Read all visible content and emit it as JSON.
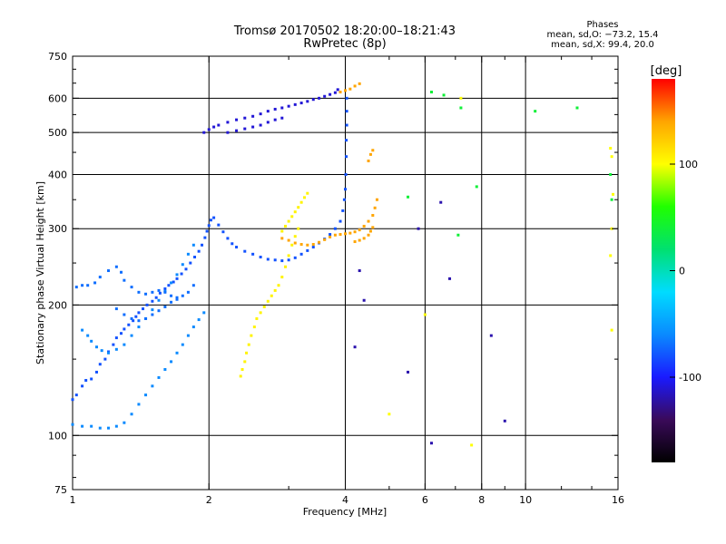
{
  "header": {
    "title_line1": "Tromsø 20170502 18:20:00–18:21:43",
    "title_line2": "RwPretec (8p)",
    "stats_title": "Phases",
    "stats_line1": "mean, sd,O: −73.2, 15.4",
    "stats_line2": "mean, sd,X:  99.4, 20.0"
  },
  "colorbar": {
    "unit_label": "[deg]",
    "ticks": [
      "100",
      "0",
      "-100"
    ],
    "tick_values": [
      100,
      0,
      -100
    ],
    "range": [
      -180,
      180
    ],
    "colors": [
      "#000000",
      "#3a0a5a",
      "#1a1aff",
      "#0a8aff",
      "#00dcff",
      "#00e070",
      "#20ff00",
      "#ffff00",
      "#ffa500",
      "#ff0000"
    ]
  },
  "chart_data": {
    "type": "scatter",
    "xlabel": "Frequency [MHz]",
    "ylabel": "Stationary phase Virtual Height [km]",
    "xscale": "log",
    "yscale": "log",
    "xlim": [
      1,
      16
    ],
    "ylim": [
      75,
      750
    ],
    "xticks": [
      1,
      2,
      4,
      6,
      8,
      10,
      16
    ],
    "xtick_labels": [
      "1",
      "2",
      "4",
      "6",
      "8",
      "10",
      "16"
    ],
    "yticks": [
      75,
      100,
      200,
      300,
      400,
      500,
      600,
      750
    ],
    "ytick_labels": [
      "75",
      "100",
      "200",
      "300",
      "400",
      "500",
      "600",
      "750"
    ],
    "grid_x": [
      2,
      4,
      6,
      8,
      10
    ],
    "grid_y": [
      100,
      200,
      300,
      400,
      500,
      600
    ],
    "series": [
      {
        "color_phase": -80,
        "points": [
          [
            1.0,
            121
          ],
          [
            1.02,
            124
          ],
          [
            1.05,
            130
          ],
          [
            1.07,
            134
          ],
          [
            1.1,
            135
          ],
          [
            1.13,
            140
          ],
          [
            1.15,
            146
          ],
          [
            1.18,
            150
          ],
          [
            1.2,
            156
          ],
          [
            1.23,
            162
          ],
          [
            1.25,
            168
          ],
          [
            1.28,
            172
          ],
          [
            1.3,
            176
          ],
          [
            1.33,
            180
          ],
          [
            1.36,
            184
          ],
          [
            1.38,
            188
          ],
          [
            1.4,
            192
          ],
          [
            1.43,
            196
          ],
          [
            1.46,
            200
          ],
          [
            1.5,
            204
          ],
          [
            1.53,
            208
          ],
          [
            1.56,
            213
          ],
          [
            1.6,
            218
          ],
          [
            1.63,
            222
          ],
          [
            1.67,
            226
          ],
          [
            1.7,
            230
          ],
          [
            1.74,
            236
          ],
          [
            1.78,
            242
          ],
          [
            1.82,
            250
          ],
          [
            1.86,
            258
          ],
          [
            1.9,
            266
          ],
          [
            1.93,
            275
          ],
          [
            1.96,
            286
          ],
          [
            1.98,
            296
          ],
          [
            2.0,
            305
          ],
          [
            2.02,
            314
          ],
          [
            2.05,
            318
          ],
          [
            2.1,
            306
          ],
          [
            2.15,
            295
          ],
          [
            2.2,
            285
          ],
          [
            2.25,
            277
          ],
          [
            2.3,
            272
          ],
          [
            2.4,
            266
          ],
          [
            2.5,
            262
          ],
          [
            2.6,
            258
          ],
          [
            2.7,
            255
          ],
          [
            2.8,
            254
          ],
          [
            2.9,
            253
          ],
          [
            3.0,
            254
          ],
          [
            3.1,
            257
          ],
          [
            3.2,
            262
          ],
          [
            3.3,
            267
          ],
          [
            3.4,
            272
          ],
          [
            3.5,
            278
          ],
          [
            3.6,
            284
          ],
          [
            3.7,
            291
          ],
          [
            3.8,
            300
          ],
          [
            3.9,
            312
          ],
          [
            3.95,
            330
          ],
          [
            3.98,
            350
          ],
          [
            4.0,
            370
          ],
          [
            4.01,
            400
          ],
          [
            4.02,
            440
          ],
          [
            4.02,
            480
          ],
          [
            4.03,
            520
          ],
          [
            4.03,
            560
          ],
          [
            4.03,
            600
          ]
        ]
      },
      {
        "color_phase": -110,
        "points": [
          [
            1.95,
            500
          ],
          [
            2.0,
            508
          ],
          [
            2.05,
            515
          ],
          [
            2.1,
            520
          ],
          [
            2.2,
            528
          ],
          [
            2.3,
            535
          ],
          [
            2.4,
            540
          ],
          [
            2.5,
            545
          ],
          [
            2.6,
            552
          ],
          [
            2.7,
            560
          ],
          [
            2.8,
            566
          ],
          [
            2.9,
            570
          ],
          [
            3.0,
            575
          ],
          [
            3.1,
            580
          ],
          [
            3.2,
            585
          ],
          [
            3.3,
            590
          ],
          [
            3.4,
            596
          ],
          [
            3.5,
            600
          ],
          [
            3.6,
            606
          ],
          [
            3.7,
            612
          ],
          [
            3.8,
            618
          ],
          [
            3.85,
            628
          ],
          [
            2.2,
            500
          ],
          [
            2.3,
            505
          ],
          [
            2.4,
            510
          ],
          [
            2.5,
            515
          ],
          [
            2.6,
            520
          ],
          [
            2.7,
            528
          ],
          [
            2.8,
            535
          ],
          [
            2.9,
            540
          ]
        ]
      },
      {
        "color_phase": -60,
        "points": [
          [
            1.0,
            106
          ],
          [
            1.05,
            105
          ],
          [
            1.1,
            105
          ],
          [
            1.15,
            104
          ],
          [
            1.2,
            104
          ],
          [
            1.25,
            105
          ],
          [
            1.3,
            107
          ],
          [
            1.35,
            112
          ],
          [
            1.4,
            118
          ],
          [
            1.45,
            124
          ],
          [
            1.5,
            130
          ],
          [
            1.55,
            136
          ],
          [
            1.6,
            142
          ],
          [
            1.65,
            148
          ],
          [
            1.7,
            155
          ],
          [
            1.75,
            162
          ],
          [
            1.8,
            170
          ],
          [
            1.85,
            178
          ],
          [
            1.9,
            185
          ],
          [
            1.95,
            192
          ],
          [
            1.05,
            175
          ],
          [
            1.08,
            170
          ],
          [
            1.1,
            165
          ],
          [
            1.13,
            160
          ],
          [
            1.16,
            157
          ],
          [
            1.2,
            155
          ],
          [
            1.25,
            158
          ],
          [
            1.3,
            162
          ],
          [
            1.35,
            170
          ],
          [
            1.4,
            178
          ],
          [
            1.45,
            186
          ],
          [
            1.5,
            195
          ],
          [
            1.55,
            205
          ],
          [
            1.6,
            215
          ],
          [
            1.65,
            225
          ],
          [
            1.7,
            235
          ],
          [
            1.75,
            248
          ],
          [
            1.8,
            262
          ],
          [
            1.85,
            275
          ]
        ]
      },
      {
        "color_phase": -70,
        "points": [
          [
            1.02,
            220
          ],
          [
            1.05,
            222
          ],
          [
            1.08,
            222
          ],
          [
            1.12,
            225
          ],
          [
            1.15,
            232
          ],
          [
            1.2,
            240
          ],
          [
            1.25,
            245
          ],
          [
            1.28,
            238
          ],
          [
            1.3,
            228
          ],
          [
            1.35,
            220
          ],
          [
            1.4,
            214
          ],
          [
            1.45,
            212
          ],
          [
            1.5,
            214
          ],
          [
            1.55,
            216
          ],
          [
            1.6,
            214
          ],
          [
            1.65,
            210
          ],
          [
            1.7,
            208
          ],
          [
            1.75,
            210
          ],
          [
            1.8,
            214
          ],
          [
            1.85,
            222
          ],
          [
            1.25,
            196
          ],
          [
            1.3,
            190
          ],
          [
            1.35,
            186
          ],
          [
            1.4,
            184
          ],
          [
            1.45,
            186
          ],
          [
            1.5,
            190
          ],
          [
            1.55,
            194
          ],
          [
            1.6,
            198
          ],
          [
            1.65,
            203
          ],
          [
            1.7,
            206
          ]
        ]
      },
      {
        "color_phase": 105,
        "points": [
          [
            2.35,
            137
          ],
          [
            2.37,
            142
          ],
          [
            2.4,
            148
          ],
          [
            2.42,
            155
          ],
          [
            2.45,
            162
          ],
          [
            2.48,
            170
          ],
          [
            2.52,
            178
          ],
          [
            2.55,
            186
          ],
          [
            2.6,
            192
          ],
          [
            2.65,
            198
          ],
          [
            2.7,
            204
          ],
          [
            2.75,
            210
          ],
          [
            2.8,
            216
          ],
          [
            2.85,
            222
          ],
          [
            2.9,
            232
          ],
          [
            2.95,
            245
          ],
          [
            3.0,
            260
          ],
          [
            3.05,
            275
          ],
          [
            3.1,
            288
          ],
          [
            3.15,
            300
          ],
          [
            2.9,
            296
          ],
          [
            2.95,
            304
          ],
          [
            3.0,
            312
          ],
          [
            3.05,
            320
          ],
          [
            3.1,
            328
          ],
          [
            3.15,
            336
          ],
          [
            3.2,
            345
          ],
          [
            3.25,
            354
          ],
          [
            3.3,
            362
          ]
        ]
      },
      {
        "color_phase": 140,
        "points": [
          [
            2.9,
            285
          ],
          [
            3.0,
            282
          ],
          [
            3.1,
            278
          ],
          [
            3.2,
            276
          ],
          [
            3.3,
            275
          ],
          [
            3.4,
            276
          ],
          [
            3.5,
            279
          ],
          [
            3.6,
            283
          ],
          [
            3.7,
            287
          ],
          [
            3.8,
            290
          ],
          [
            3.9,
            291
          ],
          [
            4.0,
            292
          ],
          [
            4.1,
            293
          ],
          [
            4.2,
            295
          ],
          [
            4.3,
            298
          ],
          [
            4.4,
            304
          ],
          [
            4.5,
            312
          ],
          [
            4.6,
            322
          ],
          [
            4.65,
            335
          ],
          [
            4.7,
            350
          ],
          [
            4.2,
            280
          ],
          [
            4.3,
            282
          ],
          [
            4.4,
            285
          ],
          [
            4.5,
            290
          ],
          [
            4.55,
            296
          ],
          [
            4.6,
            302
          ],
          [
            3.9,
            620
          ],
          [
            4.0,
            625
          ],
          [
            4.1,
            630
          ],
          [
            4.2,
            640
          ],
          [
            4.3,
            648
          ],
          [
            4.5,
            430
          ],
          [
            4.55,
            445
          ],
          [
            4.6,
            455
          ]
        ]
      },
      {
        "color_phase": -120,
        "points": [
          [
            4.3,
            240
          ],
          [
            4.4,
            205
          ],
          [
            4.2,
            160
          ],
          [
            5.5,
            140
          ],
          [
            6.2,
            96
          ],
          [
            8.4,
            170
          ],
          [
            9.0,
            108
          ],
          [
            6.8,
            230
          ],
          [
            6.5,
            345
          ],
          [
            5.8,
            300
          ]
        ]
      },
      {
        "color_phase": 40,
        "points": [
          [
            6.2,
            620
          ],
          [
            6.6,
            610
          ],
          [
            7.2,
            570
          ],
          [
            10.5,
            560
          ],
          [
            13.0,
            570
          ],
          [
            15.4,
            400
          ],
          [
            15.5,
            350
          ],
          [
            7.8,
            375
          ],
          [
            5.5,
            355
          ],
          [
            7.1,
            290
          ]
        ]
      },
      {
        "color_phase": 100,
        "points": [
          [
            15.4,
            460
          ],
          [
            15.5,
            440
          ],
          [
            15.6,
            360
          ],
          [
            15.5,
            300
          ],
          [
            15.4,
            260
          ],
          [
            15.5,
            175
          ],
          [
            7.2,
            600
          ],
          [
            7.6,
            95
          ],
          [
            5.0,
            112
          ],
          [
            6.0,
            190
          ]
        ]
      }
    ]
  }
}
